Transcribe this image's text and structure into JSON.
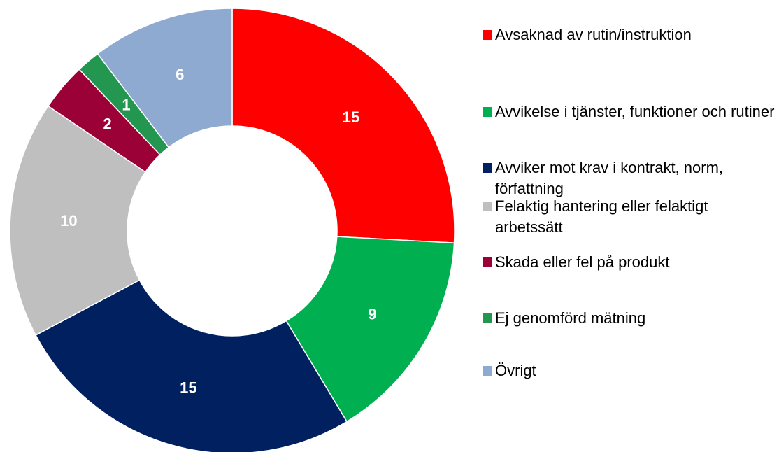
{
  "chart_data": {
    "type": "donut",
    "categories": [
      "Avsaknad av rutin/instruktion",
      "Avvikelse i tjänster, funktioner och rutiner",
      "Avviker mot krav i kontrakt, norm, författning",
      "Felaktig hantering eller felaktigt arbetssätt",
      "Skada eller fel på produkt",
      "Ej genomförd mätning",
      "Övrigt"
    ],
    "values": [
      15,
      9,
      15,
      10,
      2,
      1,
      6
    ],
    "colors": [
      "#ff0000",
      "#00b050",
      "#002060",
      "#bfbfbf",
      "#9b0037",
      "#239650",
      "#8eaad0"
    ],
    "legend": "right"
  }
}
